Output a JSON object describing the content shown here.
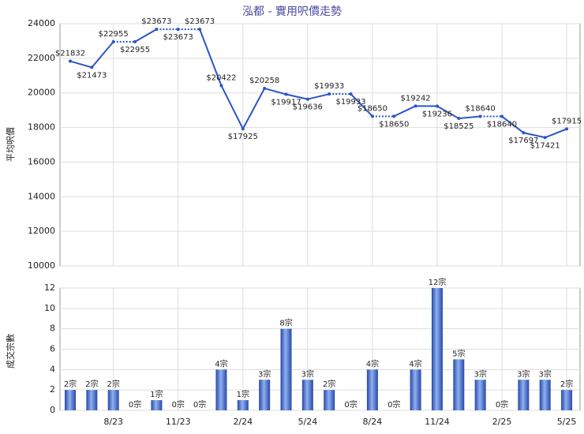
{
  "chart_data": [
    {
      "type": "line",
      "title": "泓都 - 實用呎價走勢",
      "y_label": "平均呎價",
      "categories": [
        null,
        null,
        "8/23",
        null,
        null,
        "11/23",
        null,
        null,
        "2/24",
        null,
        null,
        "5/24",
        null,
        null,
        "8/24",
        null,
        null,
        "11/24",
        null,
        null,
        "2/25",
        null,
        null,
        "5/25"
      ],
      "series": [
        {
          "name": "平均呎價",
          "color": "#2a55c8",
          "values": [
            21832,
            21473,
            22955,
            22955,
            23673,
            23673,
            23673,
            20422,
            17925,
            20258,
            19917,
            19636,
            19933,
            19933,
            18650,
            18650,
            19242,
            19236,
            18525,
            18640,
            18640,
            17697,
            17421,
            17915
          ],
          "value_labels": [
            "$21832",
            "$21473",
            "$22955",
            "$22955",
            "$23673",
            "$23673",
            "$23673",
            "$20422",
            "$17925",
            "$20258",
            "$19917",
            "$19636",
            "$19933",
            "$19933",
            "$18650",
            "$18650",
            "$19242",
            "$19236",
            "$18525",
            "$18640",
            "$18640",
            "$17697",
            "$17421",
            "$17915"
          ]
        }
      ],
      "ylim": [
        10000,
        24000
      ],
      "yticks": [
        10000,
        12000,
        14000,
        16000,
        18000,
        20000,
        22000,
        24000
      ],
      "grid": true
    },
    {
      "type": "bar",
      "y_label": "成交宗數",
      "categories": [
        null,
        null,
        "8/23",
        null,
        null,
        "11/23",
        null,
        null,
        "2/24",
        null,
        null,
        "5/24",
        null,
        null,
        "8/24",
        null,
        null,
        "11/24",
        null,
        null,
        "2/25",
        null,
        null,
        "5/25"
      ],
      "values": [
        2,
        2,
        2,
        0,
        1,
        0,
        0,
        4,
        1,
        3,
        8,
        3,
        2,
        0,
        4,
        0,
        4,
        12,
        5,
        3,
        0,
        3,
        3,
        2
      ],
      "value_labels": [
        "2宗",
        "2宗",
        "2宗",
        "0宗",
        "1宗",
        "0宗",
        "0宗",
        "4宗",
        "1宗",
        "3宗",
        "8宗",
        "3宗",
        "2宗",
        "0宗",
        "4宗",
        "0宗",
        "4宗",
        "12宗",
        "5宗",
        "3宗",
        "0宗",
        "3宗",
        "3宗",
        "2宗"
      ],
      "color": "#3a62c4",
      "ylim": [
        0,
        12
      ],
      "yticks": [
        0,
        2,
        4,
        6,
        8,
        10,
        12
      ],
      "grid": true
    }
  ]
}
